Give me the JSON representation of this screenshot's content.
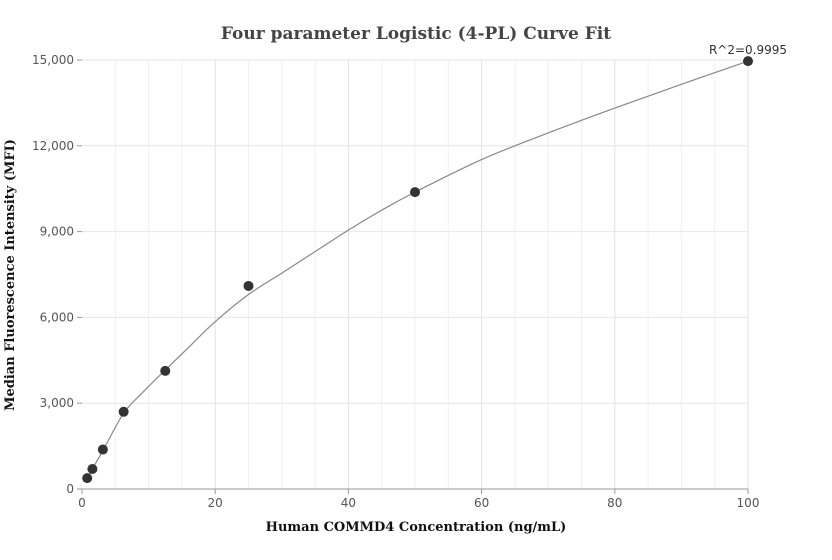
{
  "chart_data": {
    "type": "scatter",
    "title": "Four parameter Logistic (4-PL) Curve Fit",
    "xlabel": "Human COMMD4 Concentration (ng/mL)",
    "ylabel": "Median Fluorescence Intensity (MFI)",
    "annotation": "R^2=0.9995",
    "xlim": [
      0,
      100
    ],
    "ylim": [
      0,
      15000
    ],
    "x_ticks": [
      0,
      20,
      40,
      60,
      80,
      100
    ],
    "x_tick_labels": [
      "0",
      "20",
      "40",
      "60",
      "80",
      "100"
    ],
    "y_ticks": [
      0,
      3000,
      6000,
      9000,
      12000,
      15000
    ],
    "y_tick_labels": [
      "0",
      "3,000",
      "6,000",
      "9,000",
      "12,000",
      "15,000"
    ],
    "grid": true,
    "points": {
      "x": [
        0.78,
        1.56,
        3.13,
        6.25,
        12.5,
        25,
        50,
        100
      ],
      "y": [
        380,
        700,
        1380,
        2700,
        4130,
        7100,
        10380,
        14960
      ]
    },
    "fit_curve": {
      "x": [
        0.78,
        1.56,
        3.13,
        6.25,
        9,
        12.5,
        16,
        20,
        25,
        30,
        35,
        40,
        45,
        50,
        60,
        70,
        80,
        90,
        100
      ],
      "y": [
        380,
        700,
        1340,
        2650,
        3350,
        4160,
        4950,
        5850,
        6800,
        7550,
        8300,
        9050,
        9750,
        10380,
        11520,
        12450,
        13320,
        14150,
        14960
      ]
    },
    "colors": {
      "points": "#333333",
      "curve": "#888888",
      "grid": "#e6e6e6",
      "axis": "#999999"
    }
  }
}
